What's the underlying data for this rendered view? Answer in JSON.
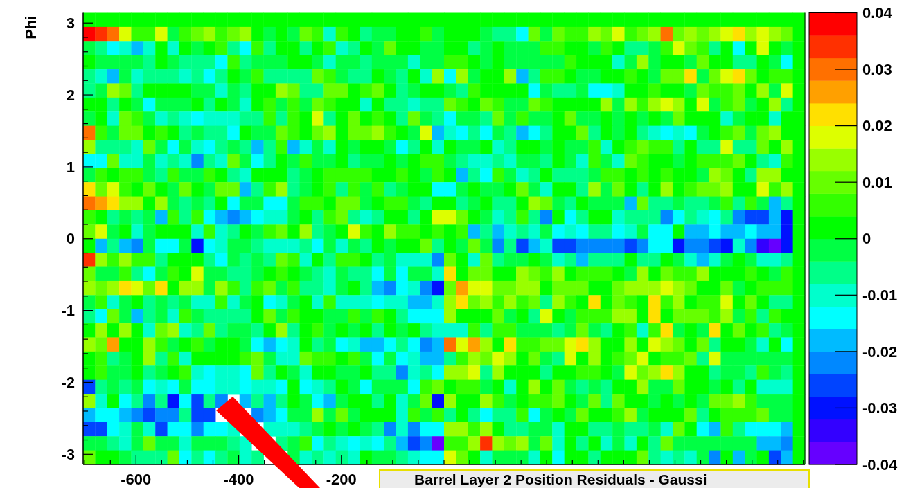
{
  "chart_data": {
    "type": "heatmap",
    "title": "Barrel Layer 2 Position Residuals - Gaussi",
    "ylabel": "Phi",
    "xlim": [
      -703,
      703
    ],
    "ylim": [
      -3.1416,
      3.1416
    ],
    "clim": [
      -0.04,
      0.04
    ],
    "cticks": [
      -0.04,
      -0.03,
      -0.02,
      -0.01,
      0,
      0.01,
      0.02,
      0.03,
      0.04
    ],
    "xticks": [
      {
        "value": -700,
        "label": null
      },
      {
        "value": -650,
        "label": null
      },
      -600,
      {
        "value": -550,
        "label": null
      },
      {
        "value": -500,
        "label": null
      },
      {
        "value": -450,
        "label": null
      },
      -400,
      {
        "value": -350,
        "label": null
      },
      {
        "value": -300,
        "label": null
      },
      {
        "value": -250,
        "label": null
      },
      -200,
      {
        "value": -150,
        "label": null
      },
      {
        "value": -100,
        "label": null
      },
      {
        "value": -50,
        "label": null
      },
      {
        "value": 0,
        "label": null
      },
      {
        "value": 50,
        "label": null
      },
      {
        "value": 100,
        "label": null
      },
      {
        "value": 150,
        "label": null
      },
      {
        "value": 200,
        "label": null
      },
      {
        "value": 250,
        "label": null
      },
      {
        "value": 300,
        "label": null
      },
      {
        "value": 350,
        "label": null
      },
      {
        "value": 400,
        "label": null
      },
      {
        "value": 450,
        "label": null
      },
      {
        "value": 500,
        "label": null
      },
      {
        "value": 550,
        "label": null
      },
      {
        "value": 600,
        "label": null
      },
      {
        "value": 650,
        "label": null
      },
      {
        "value": 700,
        "label": null
      }
    ],
    "yticks": [
      -3,
      {
        "value": -2.8,
        "label": null
      },
      {
        "value": -2.6,
        "label": null
      },
      {
        "value": -2.4,
        "label": null
      },
      {
        "value": -2.2,
        "label": null
      },
      -2,
      {
        "value": -1.8,
        "label": null
      },
      {
        "value": -1.6,
        "label": null
      },
      {
        "value": -1.4,
        "label": null
      },
      {
        "value": -1.2,
        "label": null
      },
      -1,
      {
        "value": -0.8,
        "label": null
      },
      {
        "value": -0.6,
        "label": null
      },
      {
        "value": -0.4,
        "label": null
      },
      {
        "value": -0.2,
        "label": null
      },
      0,
      {
        "value": 0.2,
        "label": null
      },
      {
        "value": 0.4,
        "label": null
      },
      {
        "value": 0.6,
        "label": null
      },
      {
        "value": 0.8,
        "label": null
      },
      1,
      {
        "value": 1.2,
        "label": null
      },
      {
        "value": 1.4,
        "label": null
      },
      {
        "value": 1.6,
        "label": null
      },
      {
        "value": 1.8,
        "label": null
      },
      2,
      {
        "value": 2.2,
        "label": null
      },
      {
        "value": 2.4,
        "label": null
      },
      {
        "value": 2.6,
        "label": null
      },
      {
        "value": 2.8,
        "label": null
      },
      3
    ],
    "cells": [
      [
        0,
        0,
        0,
        0,
        0,
        0,
        0,
        0,
        0,
        0,
        0,
        0,
        0,
        0,
        0,
        0,
        0,
        0,
        0,
        0,
        0,
        0,
        0,
        0,
        0,
        0,
        0,
        0,
        0,
        0,
        0,
        0,
        0,
        0,
        0,
        0,
        0,
        0,
        0,
        0,
        0,
        0,
        0,
        0,
        0,
        0,
        0,
        0,
        0,
        0,
        0,
        0,
        0,
        0,
        0,
        0,
        0,
        0,
        0,
        0
      ],
      [
        0.038,
        0.034,
        0.03,
        0.018,
        0.006,
        0.006,
        0.018,
        -0.002,
        0.006,
        0.01,
        0.014,
        0.006,
        0.01,
        0.014,
        0.002,
        -0.002,
        0.002,
        -0.002,
        0.01,
        0.006,
        -0.01,
        0.006,
        0.002,
        -0.006,
        -0.002,
        -0.002,
        0.002,
        0.002,
        0.006,
        -0.002,
        0.002,
        0.002,
        0.002,
        -0.002,
        -0.006,
        -0.006,
        -0.014,
        0.01,
        -0.002,
        0.01,
        0.006,
        0.006,
        0.014,
        0.01,
        0.018,
        0.006,
        0.01,
        0.014,
        0.03,
        0.01,
        0.014,
        0.01,
        0.014,
        0.018,
        0.022,
        0.014,
        0.018,
        0.014,
        0.01,
        0
      ],
      [
        -0.002,
        -0.006,
        -0.014,
        -0.01,
        -0.018,
        -0.01,
        0.002,
        -0.01,
        0.002,
        -0.002,
        0.002,
        0.006,
        -0.006,
        -0.014,
        0.006,
        -0.006,
        0.002,
        0.002,
        -0.006,
        0.002,
        0.006,
        -0.01,
        -0.006,
        0.002,
        -0.002,
        0.01,
        0.002,
        0.002,
        -0.002,
        -0.002,
        0.002,
        0.002,
        -0.006,
        -0.002,
        0.002,
        -0.002,
        -0.002,
        -0.002,
        0.006,
        0.006,
        0.002,
        0.002,
        -0.002,
        0.006,
        0.002,
        -0.006,
        -0.006,
        -0.002,
        0.006,
        0.018,
        0.01,
        0.006,
        -0.006,
        0.002,
        -0.014,
        0.002,
        0.018,
        0.002,
        -0.002,
        0
      ],
      [
        0.002,
        -0.002,
        -0.002,
        -0.002,
        -0.002,
        -0.006,
        0.002,
        -0.002,
        -0.006,
        -0.006,
        -0.006,
        -0.014,
        0.006,
        -0.006,
        -0.002,
        -0.002,
        -0.002,
        0.002,
        0.002,
        -0.002,
        -0.01,
        -0.002,
        -0.002,
        -0.006,
        -0.002,
        -0.002,
        -0.002,
        -0.01,
        -0.002,
        -0.002,
        0.006,
        0.006,
        0.002,
        -0.002,
        0.002,
        -0.002,
        -0.002,
        -0.002,
        -0.002,
        -0.002,
        0.006,
        0.002,
        0.002,
        0.002,
        -0.01,
        -0.002,
        0.014,
        -0.002,
        0.002,
        0.002,
        -0.002,
        0.01,
        0.002,
        0.002,
        -0.006,
        -0.006,
        0.002,
        -0.002,
        -0.014,
        0
      ],
      [
        -0.006,
        -0.01,
        -0.018,
        -0.002,
        -0.01,
        -0.006,
        -0.006,
        -0.006,
        -0.01,
        -0.006,
        -0.014,
        -0.006,
        0.002,
        -0.002,
        0.006,
        -0.006,
        -0.006,
        -0.006,
        -0.006,
        0.01,
        0.006,
        -0.002,
        -0.006,
        -0.006,
        0.002,
        -0.002,
        -0.006,
        0.002,
        -0.01,
        0.014,
        -0.014,
        0.014,
        -0.002,
        0.002,
        0.002,
        0.014,
        -0.018,
        -0.006,
        0.006,
        0.006,
        0.002,
        -0.002,
        -0.002,
        0.002,
        0.002,
        0.006,
        0.002,
        -0.002,
        0.01,
        0.01,
        0.022,
        -0.002,
        0.01,
        0.018,
        0.022,
        0.01,
        0.002,
        0.006,
        0.006,
        0
      ],
      [
        -0.006,
        -0.002,
        0.014,
        0.01,
        -0.006,
        0.002,
        0.002,
        0.002,
        0.002,
        -0.002,
        -0.002,
        -0.01,
        -0.002,
        -0.006,
        0.002,
        0.002,
        0.014,
        0.01,
        -0.006,
        -0.006,
        0.01,
        0.01,
        0.002,
        0.006,
        0.01,
        0.002,
        -0.006,
        -0.002,
        0.002,
        0.002,
        -0.002,
        -0.006,
        0.006,
        0.002,
        0.002,
        0.002,
        0.002,
        -0.014,
        -0.002,
        -0.006,
        -0.006,
        -0.002,
        -0.014,
        -0.014,
        -0.01,
        0.002,
        0.002,
        0.006,
        0.002,
        0.002,
        -0.002,
        0.01,
        0.006,
        0.006,
        0.01,
        0.002,
        0.014,
        -0.002,
        0.018,
        0
      ],
      [
        0.002,
        0.002,
        -0.006,
        0.002,
        -0.002,
        -0.014,
        -0.002,
        -0.002,
        -0.002,
        0.002,
        -0.006,
        0.002,
        -0.002,
        -0.01,
        0.002,
        0.006,
        -0.002,
        0.006,
        -0.002,
        0.01,
        0.006,
        0.002,
        0.002,
        -0.01,
        0.002,
        -0.006,
        -0.006,
        -0.01,
        -0.006,
        -0.006,
        0.01,
        0.006,
        0.002,
        0.01,
        0.006,
        -0.002,
        -0.002,
        0.01,
        0.006,
        0.002,
        0.002,
        0.002,
        0.002,
        0.014,
        -0.002,
        0.014,
        0.006,
        0.014,
        0.018,
        0.014,
        0.002,
        0.018,
        -0.002,
        0.006,
        0.01,
        -0.002,
        0.002,
        0.014,
        -0.006,
        0
      ],
      [
        -0.002,
        0.002,
        -0.01,
        0.01,
        0.006,
        -0.002,
        -0.01,
        -0.006,
        -0.01,
        -0.014,
        -0.01,
        -0.01,
        -0.01,
        -0.006,
        -0.006,
        0.006,
        -0.006,
        0.006,
        0.002,
        0.018,
        -0.006,
        0.002,
        0.01,
        0.002,
        0.006,
        0.002,
        -0.006,
        0.01,
        -0.002,
        -0.006,
        -0.014,
        -0.002,
        -0.002,
        -0.006,
        0.01,
        -0.002,
        0.006,
        -0.002,
        -0.002,
        0.002,
        0.01,
        -0.002,
        -0.002,
        0.002,
        -0.002,
        0.002,
        -0.002,
        0.002,
        -0.002,
        0.01,
        0.002,
        0.002,
        0.002,
        -0.01,
        -0.002,
        0.002,
        0.002,
        -0.01,
        0.002,
        0
      ],
      [
        0.03,
        0.006,
        -0.002,
        0.01,
        0.01,
        0.002,
        0.006,
        0.002,
        -0.006,
        -0.002,
        -0.006,
        -0.006,
        -0.014,
        0.002,
        -0.002,
        -0.002,
        0.01,
        0.006,
        0.002,
        0.01,
        0.014,
        0.002,
        0.01,
        0.01,
        0.014,
        0.006,
        0.002,
        -0.002,
        0.018,
        -0.018,
        -0.01,
        -0.014,
        -0.006,
        -0.014,
        -0.002,
        -0.006,
        -0.018,
        -0.014,
        -0.006,
        0.002,
        0.002,
        0.01,
        -0.006,
        0.002,
        -0.002,
        0.002,
        -0.006,
        -0.01,
        -0.014,
        -0.01,
        -0.014,
        -0.002,
        0.002,
        0.006,
        0.01,
        -0.002,
        0.01,
        0.014,
        0.002,
        0
      ],
      [
        0.014,
        -0.006,
        -0.006,
        -0.006,
        -0.01,
        0.01,
        -0.002,
        -0.014,
        -0.002,
        -0.01,
        -0.014,
        -0.006,
        -0.002,
        -0.006,
        -0.018,
        -0.006,
        0.006,
        -0.018,
        -0.01,
        -0.002,
        -0.01,
        0.002,
        -0.002,
        0.002,
        0.002,
        -0.002,
        -0.014,
        -0.006,
        0.002,
        -0.01,
        0.002,
        -0.002,
        -0.002,
        0.002,
        -0.01,
        -0.006,
        0.002,
        0.002,
        -0.002,
        0.002,
        -0.002,
        -0.002,
        0.006,
        -0.01,
        0.002,
        0.006,
        0.01,
        0.006,
        0.006,
        -0.006,
        0.002,
        -0.006,
        -0.006,
        0.018,
        -0.006,
        -0.006,
        0.01,
        0.002,
        0.014,
        0
      ],
      [
        -0.014,
        -0.014,
        0.01,
        -0.01,
        -0.01,
        -0.002,
        -0.01,
        -0.006,
        -0.01,
        -0.022,
        -0.006,
        -0.01,
        0.01,
        -0.002,
        -0.014,
        -0.006,
        0.002,
        -0.002,
        0.006,
        -0.002,
        -0.002,
        0.002,
        -0.006,
        -0.002,
        -0.002,
        0.002,
        -0.002,
        0.002,
        0.006,
        0.006,
        -0.002,
        -0.006,
        -0.01,
        -0.01,
        -0.006,
        -0.01,
        -0.002,
        -0.002,
        -0.006,
        0.002,
        -0.002,
        -0.01,
        0.006,
        -0.002,
        -0.01,
        0.01,
        0.006,
        0.002,
        0.002,
        -0.002,
        0.002,
        0.006,
        0.006,
        0.006,
        0.01,
        0.002,
        -0.006,
        -0.01,
        0.006,
        0
      ],
      [
        -0.002,
        0.006,
        0.002,
        0.006,
        0.006,
        -0.002,
        -0.006,
        0.006,
        -0.002,
        -0.002,
        0.006,
        0.002,
        -0.006,
        -0.01,
        0.002,
        0.002,
        0.002,
        -0.006,
        -0.002,
        0.002,
        0.006,
        0.006,
        0.006,
        0.006,
        0.002,
        0.002,
        0.006,
        0.002,
        -0.002,
        0.006,
        0.002,
        -0.018,
        -0.006,
        -0.014,
        0.006,
        -0.002,
        -0.01,
        -0.006,
        0.002,
        -0.006,
        -0.006,
        -0.006,
        -0.002,
        0.006,
        0.006,
        0.002,
        0.006,
        0.002,
        0.006,
        0.002,
        0.002,
        -0.002,
        0.014,
        0.01,
        0.002,
        -0.006,
        0.014,
        0.014,
        0.002,
        0
      ],
      [
        0.022,
        0.01,
        0.018,
        0.006,
        0.002,
        0.01,
        0.002,
        -0.002,
        0.01,
        0.002,
        -0.002,
        0.01,
        0.01,
        -0.018,
        -0.006,
        0.006,
        0.014,
        -0.006,
        -0.002,
        0.002,
        0.006,
        -0.006,
        0.006,
        -0.002,
        0.006,
        -0.006,
        -0.002,
        0.002,
        0.002,
        -0.014,
        -0.014,
        -0.002,
        0.002,
        -0.002,
        -0.002,
        0.002,
        0.01,
        -0.002,
        -0.01,
        0.002,
        0.002,
        -0.006,
        0.014,
        -0.002,
        0.01,
        0.002,
        -0.006,
        0.002,
        0.014,
        0.002,
        0.006,
        0.01,
        0.01,
        0.014,
        0.002,
        0.002,
        0.018,
        0.006,
        0.014,
        0
      ],
      [
        0.03,
        0.026,
        0.022,
        0.014,
        0.014,
        0.002,
        0.014,
        -0.002,
        -0.006,
        -0.002,
        -0.006,
        0.002,
        -0.014,
        -0.002,
        -0.002,
        -0.014,
        -0.014,
        -0.002,
        0.006,
        0.006,
        0.002,
        0.01,
        0.01,
        -0.002,
        0.002,
        0.006,
        0.006,
        -0.002,
        -0.006,
        0.002,
        0.002,
        -0.006,
        -0.002,
        0.002,
        -0.006,
        -0.006,
        0.002,
        0.014,
        0.01,
        -0.002,
        -0.006,
        0.002,
        -0.002,
        -0.002,
        -0.002,
        -0.018,
        0.01,
        -0.006,
        -0.006,
        -0.002,
        -0.006,
        -0.006,
        -0.002,
        0.006,
        -0.006,
        0.006,
        -0.002,
        -0.018,
        -0.006,
        0
      ],
      [
        0.006,
        0.002,
        -0.006,
        -0.002,
        -0.006,
        -0.002,
        -0.018,
        0.006,
        -0.006,
        0.006,
        -0.014,
        -0.018,
        -0.022,
        -0.018,
        -0.014,
        -0.01,
        -0.01,
        -0.002,
        0.002,
        -0.006,
        0.006,
        0.01,
        -0.006,
        -0.01,
        -0.006,
        0.002,
        0.002,
        -0.006,
        0.002,
        0.018,
        0.018,
        0.01,
        0.002,
        -0.002,
        -0.01,
        -0.006,
        0.006,
        -0.006,
        -0.022,
        0.002,
        -0.014,
        -0.006,
        0.002,
        0.002,
        -0.01,
        -0.006,
        -0.006,
        -0.006,
        -0.022,
        -0.014,
        -0.006,
        -0.01,
        -0.014,
        -0.006,
        -0.022,
        -0.026,
        -0.026,
        -0.018,
        -0.03,
        0
      ],
      [
        0.01,
        0.018,
        -0.002,
        0.002,
        -0.01,
        -0.002,
        0.002,
        0.002,
        0.002,
        -0.01,
        0.006,
        -0.01,
        -0.006,
        0.002,
        -0.002,
        0.006,
        0.01,
        0.002,
        0.014,
        -0.006,
        -0.002,
        0.002,
        0.018,
        0.006,
        0.002,
        0.014,
        0.006,
        0.006,
        0.002,
        0.006,
        0.002,
        0.006,
        -0.018,
        -0.006,
        -0.018,
        -0.01,
        -0.006,
        -0.01,
        -0.002,
        -0.014,
        -0.01,
        -0.014,
        -0.006,
        -0.006,
        -0.014,
        -0.01,
        -0.002,
        -0.014,
        -0.014,
        0.002,
        -0.018,
        -0.018,
        -0.014,
        -0.018,
        -0.018,
        -0.014,
        -0.018,
        -0.018,
        -0.03,
        0
      ],
      [
        0.002,
        -0.018,
        -0.006,
        -0.018,
        -0.022,
        -0.002,
        -0.014,
        -0.014,
        -0.002,
        -0.03,
        -0.014,
        -0.01,
        -0.002,
        -0.002,
        -0.006,
        -0.01,
        -0.01,
        -0.01,
        -0.006,
        -0.014,
        -0.002,
        -0.01,
        -0.002,
        -0.006,
        0.002,
        -0.002,
        0.002,
        0.002,
        0.01,
        -0.006,
        0.002,
        -0.002,
        0.01,
        -0.002,
        -0.022,
        -0.006,
        -0.026,
        -0.018,
        -0.01,
        -0.026,
        -0.026,
        -0.022,
        -0.022,
        -0.022,
        -0.022,
        -0.026,
        -0.022,
        -0.014,
        -0.014,
        -0.03,
        -0.022,
        -0.022,
        -0.026,
        -0.03,
        -0.01,
        -0.022,
        -0.034,
        -0.038,
        -0.03,
        0
      ],
      [
        0.034,
        0.014,
        0.006,
        0.014,
        0.006,
        0.006,
        -0.006,
        0.002,
        0.002,
        0.002,
        -0.006,
        -0.014,
        -0.002,
        -0.006,
        -0.002,
        -0.006,
        0.01,
        0.006,
        -0.01,
        0.002,
        -0.006,
        0.006,
        0.006,
        0.002,
        -0.006,
        -0.002,
        -0.01,
        -0.01,
        -0.01,
        -0.022,
        0.01,
        0.002,
        -0.01,
        0.01,
        -0.006,
        -0.002,
        -0.002,
        0.002,
        -0.002,
        -0.01,
        -0.006,
        -0.018,
        -0.006,
        -0.006,
        -0.006,
        0.002,
        -0.006,
        -0.006,
        0.002,
        -0.002,
        -0.01,
        -0.018,
        -0.01,
        -0.002,
        0.002,
        -0.002,
        -0.01,
        -0.01,
        -0.006,
        0
      ],
      [
        0.01,
        -0.002,
        -0.002,
        0.006,
        -0.006,
        -0.014,
        -0.002,
        0.006,
        0.002,
        0.018,
        -0.002,
        -0.002,
        -0.006,
        -0.006,
        -0.002,
        0.002,
        0.006,
        0.002,
        -0.002,
        -0.006,
        -0.01,
        -0.002,
        -0.006,
        -0.006,
        -0.014,
        -0.002,
        -0.014,
        -0.002,
        -0.002,
        -0.01,
        0.022,
        0.002,
        0.01,
        0.01,
        0.002,
        0.002,
        0.014,
        0.01,
        0.006,
        0.014,
        0.002,
        0.006,
        0.006,
        0.006,
        0.002,
        -0.002,
        0.014,
        0.002,
        0.01,
        0.006,
        0.006,
        0.014,
        0.002,
        0.002,
        0.002,
        0.006,
        0.002,
        -0.002,
        0.006,
        0
      ],
      [
        0.014,
        0.01,
        0.014,
        0.022,
        0.018,
        0.01,
        0.022,
        0.002,
        0.014,
        0.014,
        -0.002,
        0.014,
        0.006,
        -0.006,
        0.006,
        0.01,
        -0.002,
        0.006,
        -0.006,
        -0.006,
        -0.01,
        -0.002,
        0.002,
        -0.006,
        -0.018,
        -0.022,
        -0.014,
        -0.01,
        -0.022,
        -0.03,
        0.01,
        0.026,
        0.018,
        0.018,
        0.01,
        0.01,
        0.014,
        0.014,
        0.002,
        0.01,
        0.01,
        0.01,
        0.002,
        0.002,
        0.01,
        0.014,
        0.014,
        0.014,
        0.018,
        0.014,
        0.01,
        0.002,
        0.002,
        0.01,
        -0.002,
        0.002,
        0.006,
        0.006,
        0.006,
        0
      ],
      [
        -0.002,
        0.006,
        -0.01,
        -0.002,
        0.002,
        -0.006,
        -0.002,
        -0.006,
        -0.002,
        -0.01,
        -0.01,
        0.006,
        -0.01,
        -0.002,
        0.002,
        -0.014,
        -0.01,
        -0.002,
        0.002,
        -0.01,
        0.006,
        -0.01,
        -0.01,
        -0.01,
        -0.014,
        -0.01,
        -0.01,
        -0.018,
        -0.018,
        -0.01,
        0.014,
        0.022,
        0.01,
        0.014,
        0.006,
        0.014,
        0.006,
        0.01,
        -0.006,
        0.014,
        0.006,
        0.002,
        0.022,
        0.002,
        0.01,
        0.006,
        0.002,
        0.022,
        0.006,
        0.014,
        0.002,
        0.006,
        0.006,
        0.018,
        0.002,
        0.01,
        0.002,
        -0.006,
        -0.006,
        0
      ],
      [
        -0.006,
        -0.014,
        0.01,
        -0.002,
        -0.018,
        -0.006,
        -0.002,
        -0.01,
        0.006,
        -0.002,
        -0.006,
        -0.006,
        -0.006,
        -0.006,
        0.002,
        0.01,
        -0.002,
        0.006,
        0.002,
        0.002,
        -0.002,
        -0.002,
        0.006,
        -0.002,
        0.006,
        0.002,
        -0.006,
        -0.014,
        -0.014,
        -0.014,
        0.014,
        0.002,
        0.002,
        0.002,
        0.01,
        -0.002,
        0.002,
        -0.006,
        0.018,
        0.002,
        -0.002,
        0.006,
        0.006,
        0.006,
        0.014,
        0.014,
        0.002,
        0.022,
        0.002,
        0.01,
        0.01,
        0.01,
        0.006,
        0.014,
        -0.002,
        0.006,
        -0.006,
        0.006,
        0.002,
        0
      ],
      [
        0.002,
        0.014,
        0.002,
        0.014,
        0.002,
        -0.01,
        0.01,
        0.014,
        -0.01,
        -0.006,
        0.01,
        -0.006,
        -0.002,
        -0.002,
        -0.006,
        0.002,
        0.014,
        -0.006,
        0.002,
        0.006,
        -0.002,
        0.002,
        -0.002,
        0.002,
        -0.006,
        0.002,
        -0.002,
        0.002,
        -0.006,
        -0.01,
        -0.01,
        -0.01,
        0.006,
        -0.006,
        0.006,
        0.006,
        -0.002,
        -0.002,
        -0.002,
        -0.006,
        -0.002,
        0.01,
        -0.002,
        -0.006,
        0.002,
        0.006,
        -0.01,
        0.006,
        0.022,
        -0.002,
        0.002,
        -0.002,
        0.022,
        0.002,
        0.01,
        0.002,
        0.006,
        -0.006,
        -0.002,
        0
      ],
      [
        0.014,
        0.01,
        0.026,
        0.002,
        0.002,
        0.014,
        0.006,
        -0.002,
        0.002,
        0.006,
        -0.002,
        0.002,
        0.002,
        -0.002,
        -0.014,
        -0.018,
        -0.014,
        -0.01,
        0.002,
        -0.006,
        -0.002,
        -0.014,
        -0.01,
        -0.018,
        -0.018,
        -0.014,
        -0.006,
        -0.014,
        -0.022,
        -0.018,
        0.03,
        0.018,
        0.026,
        0.014,
        0.002,
        0.022,
        0.006,
        0.006,
        0.01,
        0.01,
        0.018,
        0.022,
        0.014,
        0.002,
        0.002,
        0.014,
        0.002,
        0.018,
        0.014,
        0.01,
        0.002,
        0.01,
        -0.006,
        0.002,
        0.002,
        -0.002,
        -0.01,
        0.002,
        -0.014,
        0
      ],
      [
        0.002,
        0.006,
        -0.006,
        -0.002,
        0.002,
        0.014,
        -0.006,
        0.006,
        -0.01,
        0.002,
        0.002,
        0.002,
        0.002,
        0.006,
        0.01,
        -0.002,
        -0.01,
        -0.01,
        0.01,
        0.006,
        0.006,
        0.002,
        0.006,
        -0.002,
        -0.014,
        -0.002,
        -0.014,
        -0.01,
        -0.018,
        -0.018,
        -0.006,
        0.006,
        0.014,
        0.01,
        0.018,
        0.014,
        0.002,
        0.01,
        -0.002,
        -0.006,
        0.018,
        0.002,
        0.014,
        0.002,
        0.006,
        0.01,
        0.018,
        0.002,
        0.006,
        0.006,
        0.01,
        -0.006,
        0.018,
        -0.002,
        -0.002,
        -0.002,
        -0.002,
        -0.002,
        -0.002,
        0
      ],
      [
        0.002,
        0.006,
        -0.002,
        -0.002,
        0.002,
        -0.006,
        -0.002,
        0.002,
        0.006,
        -0.01,
        -0.014,
        -0.01,
        -0.01,
        -0.014,
        0.01,
        -0.006,
        0.002,
        -0.002,
        -0.01,
        0.002,
        0.002,
        -0.002,
        -0.002,
        0.002,
        -0.006,
        -0.006,
        -0.022,
        -0.01,
        -0.006,
        -0.014,
        0.014,
        0.014,
        0.018,
        -0.006,
        0.014,
        0.002,
        0.002,
        0.002,
        -0.006,
        0.002,
        0.002,
        0.006,
        0.006,
        0.002,
        -0.002,
        0.018,
        0.01,
        0.014,
        0.022,
        0.014,
        0.002,
        0.002,
        -0.006,
        -0.002,
        -0.002,
        -0.006,
        0.006,
        -0.002,
        -0.006,
        0
      ],
      [
        -0.026,
        -0.006,
        -0.002,
        -0.006,
        -0.002,
        -0.014,
        -0.01,
        -0.014,
        -0.002,
        -0.014,
        -0.014,
        -0.01,
        -0.01,
        -0.014,
        -0.01,
        -0.01,
        -0.014,
        0.002,
        -0.014,
        -0.01,
        -0.006,
        0.002,
        -0.002,
        -0.014,
        -0.002,
        -0.002,
        -0.002,
        -0.014,
        0.006,
        0.01,
        0.002,
        0.006,
        0.006,
        -0.002,
        0.002,
        -0.01,
        0.002,
        0.014,
        0.002,
        0.01,
        -0.002,
        -0.006,
        -0.002,
        -0.006,
        0.002,
        0.002,
        0.014,
        -0.002,
        -0.002,
        0.01,
        0.002,
        0.002,
        -0.002,
        0.002,
        -0.006,
        0.002,
        -0.01,
        -0.01,
        -0.01,
        0
      ],
      [
        0.014,
        -0.01,
        0.002,
        -0.014,
        -0.006,
        -0.022,
        -0.006,
        -0.03,
        -0.014,
        -0.026,
        -0.006,
        -0.022,
        null,
        -0.018,
        -0.006,
        -0.018,
        -0.006,
        0.002,
        -0.002,
        -0.014,
        -0.018,
        -0.002,
        0.002,
        0.002,
        -0.006,
        0.002,
        -0.01,
        -0.002,
        0.01,
        -0.03,
        0.014,
        0.002,
        0.002,
        0.014,
        0.006,
        -0.002,
        0.002,
        0.006,
        0.006,
        0.01,
        0.002,
        -0.002,
        0.01,
        -0.006,
        0.01,
        0.002,
        0.002,
        -0.002,
        0.002,
        -0.002,
        0.002,
        -0.002,
        0.01,
        0.01,
        0.014,
        0.006,
        -0.002,
        -0.002,
        -0.002,
        0
      ],
      [
        -0.018,
        -0.014,
        -0.014,
        -0.018,
        -0.022,
        -0.026,
        -0.022,
        -0.022,
        -0.006,
        -0.026,
        -0.026,
        null,
        null,
        null,
        -0.022,
        -0.018,
        -0.014,
        -0.002,
        -0.002,
        0.014,
        -0.002,
        0.01,
        -0.002,
        0.002,
        0.002,
        0.002,
        -0.01,
        0.006,
        -0.002,
        0.006,
        -0.006,
        0.002,
        -0.006,
        -0.014,
        -0.006,
        -0.006,
        0.006,
        -0.014,
        -0.002,
        0.002,
        -0.002,
        0.01,
        0.002,
        0.002,
        0.006,
        0.014,
        -0.002,
        0.002,
        0.002,
        0.002,
        0.01,
        -0.006,
        0.002,
        0.006,
        0.006,
        0.006,
        0.01,
        -0.002,
        -0.002,
        0
      ],
      [
        -0.026,
        -0.026,
        -0.014,
        -0.01,
        -0.002,
        -0.01,
        -0.026,
        -0.014,
        -0.014,
        -0.022,
        -0.014,
        -0.014,
        -0.01,
        null,
        null,
        -0.01,
        -0.01,
        -0.01,
        -0.006,
        -0.002,
        0.002,
        -0.002,
        0.002,
        -0.002,
        -0.006,
        -0.022,
        -0.01,
        -0.022,
        -0.014,
        -0.014,
        0.014,
        0.014,
        0.006,
        0.014,
        0.002,
        -0.006,
        -0.006,
        -0.002,
        -0.002,
        -0.01,
        0.002,
        0.002,
        -0.006,
        -0.006,
        -0.002,
        -0.006,
        -0.006,
        -0.002,
        -0.01,
        0.01,
        0.002,
        -0.014,
        -0.018,
        0.006,
        -0.006,
        -0.014,
        -0.014,
        -0.014,
        -0.018,
        0
      ],
      [
        -0.002,
        -0.002,
        -0.006,
        -0.01,
        -0.002,
        0.01,
        -0.002,
        -0.002,
        -0.01,
        -0.002,
        -0.002,
        -0.002,
        -0.006,
        -0.01,
        null,
        null,
        -0.006,
        -0.002,
        0.006,
        -0.014,
        -0.006,
        -0.01,
        -0.014,
        -0.01,
        -0.014,
        -0.006,
        -0.018,
        -0.026,
        -0.022,
        -0.038,
        0.006,
        0.006,
        0.014,
        0.034,
        0.014,
        0.01,
        0.014,
        -0.002,
        0.01,
        -0.01,
        0.002,
        -0.006,
        0.002,
        -0.01,
        -0.002,
        -0.01,
        0.002,
        -0.006,
        0.01,
        -0.002,
        -0.002,
        -0.002,
        -0.002,
        -0.002,
        -0.002,
        -0.002,
        -0.018,
        -0.018,
        -0.022,
        0
      ],
      [
        0.01,
        0.002,
        0.002,
        -0.002,
        -0.006,
        -0.006,
        -0.006,
        0.01,
        -0.014,
        -0.006,
        -0.014,
        -0.006,
        -0.002,
        -0.01,
        -0.006,
        null,
        null,
        -0.002,
        -0.01,
        -0.006,
        -0.01,
        -0.006,
        -0.01,
        0.002,
        -0.002,
        -0.002,
        -0.006,
        -0.01,
        -0.014,
        -0.014,
        0.018,
        0.01,
        0.002,
        -0.01,
        -0.002,
        -0.002,
        -0.002,
        -0.01,
        0.002,
        -0.014,
        0.002,
        0.002,
        -0.006,
        0.002,
        0.002,
        0.002,
        0.01,
        -0.006,
        -0.01,
        -0.006,
        -0.01,
        -0.002,
        -0.022,
        0.002,
        -0.018,
        -0.002,
        0.002,
        -0.026,
        -0.018,
        0
      ]
    ]
  }
}
